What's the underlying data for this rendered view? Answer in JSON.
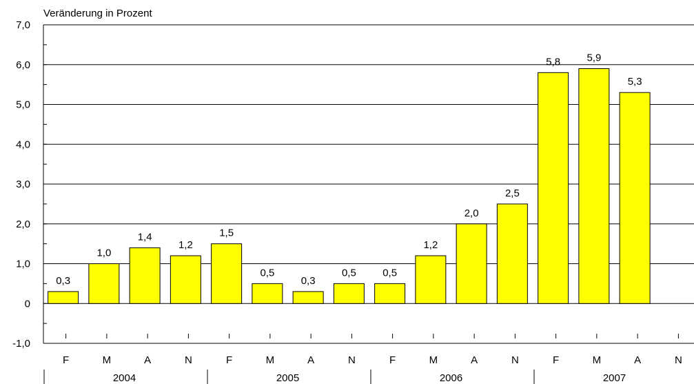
{
  "chart_data": {
    "type": "bar",
    "ylabel": "Veränderung in Prozent",
    "ylim": [
      -1.0,
      7.0
    ],
    "y_ticks": [
      {
        "value": -1.0,
        "label": "-1,0"
      },
      {
        "value": 0,
        "label": "0"
      },
      {
        "value": 1.0,
        "label": "1,0"
      },
      {
        "value": 2.0,
        "label": "2,0"
      },
      {
        "value": 3.0,
        "label": "3,0"
      },
      {
        "value": 4.0,
        "label": "4,0"
      },
      {
        "value": 5.0,
        "label": "5,0"
      },
      {
        "value": 6.0,
        "label": "6,0"
      },
      {
        "value": 7.0,
        "label": "7,0"
      }
    ],
    "grid": true,
    "categories": [
      "F",
      "M",
      "A",
      "N",
      "F",
      "M",
      "A",
      "N",
      "F",
      "M",
      "A",
      "N",
      "F",
      "M",
      "A",
      "N"
    ],
    "groups": [
      {
        "label": "2004",
        "size": 4
      },
      {
        "label": "2005",
        "size": 4
      },
      {
        "label": "2006",
        "size": 4
      },
      {
        "label": "2007",
        "size": 4
      }
    ],
    "series": [
      {
        "values": [
          0.3,
          1.0,
          1.4,
          1.2,
          1.5,
          0.5,
          0.3,
          0.5,
          0.5,
          1.2,
          2.0,
          2.5,
          5.8,
          5.9,
          5.3,
          null
        ],
        "labels": [
          "0,3",
          "1,0",
          "1,4",
          "1,2",
          "1,5",
          "0,5",
          "0,3",
          "0,5",
          "0,5",
          "1,2",
          "2,0",
          "2,5",
          "5,8",
          "5,9",
          "5,3",
          ""
        ],
        "color": "#FFFF00"
      }
    ],
    "bar_stroke": "#000000",
    "axis_color": "#000000"
  }
}
